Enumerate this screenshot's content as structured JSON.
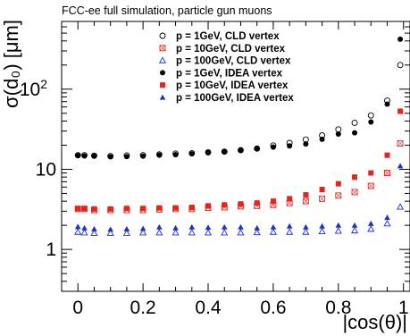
{
  "chart_data": {
    "type": "scatter",
    "title": "FCC-ee full simulation, particle gun muons",
    "xlabel": "|cos(θ)|",
    "ylabel": "σ(d₀) [μm]",
    "xlim": [
      -0.05,
      1.02
    ],
    "ylim": [
      0.3,
      700
    ],
    "ylog": true,
    "grid": false,
    "legend_position": "top-right",
    "x_ticks": [
      "0",
      "0.2",
      "0.4",
      "0.6",
      "0.8",
      "1"
    ],
    "x_tick_values": [
      0,
      0.2,
      0.4,
      0.6,
      0.8,
      1.0
    ],
    "y_ticks": [
      {
        "value": 1,
        "base": "1",
        "exp": ""
      },
      {
        "value": 10,
        "base": "10",
        "exp": ""
      },
      {
        "value": 100,
        "base": "10",
        "exp": "2"
      }
    ],
    "x": [
      0.0,
      0.02,
      0.05,
      0.1,
      0.15,
      0.2,
      0.25,
      0.3,
      0.35,
      0.4,
      0.45,
      0.5,
      0.55,
      0.6,
      0.65,
      0.7,
      0.75,
      0.8,
      0.85,
      0.9,
      0.95,
      0.99
    ],
    "series": [
      {
        "name": "p = 1GeV, CLD vertex",
        "marker": "open-circle",
        "color": "#000000",
        "values": [
          15.0,
          15.0,
          14.8,
          14.6,
          14.9,
          15.0,
          15.3,
          15.7,
          15.9,
          16.3,
          16.6,
          17.3,
          18.1,
          19.8,
          21.3,
          23.5,
          26.5,
          31.5,
          38.0,
          47.0,
          72.0,
          200.0
        ]
      },
      {
        "name": "p = 10GeV, CLD vertex",
        "marker": "open-square",
        "color": "#e8231b",
        "values": [
          3.2,
          3.2,
          3.1,
          3.1,
          3.1,
          3.1,
          3.15,
          3.2,
          3.2,
          3.3,
          3.35,
          3.45,
          3.5,
          3.6,
          3.8,
          4.0,
          4.3,
          4.7,
          5.2,
          6.2,
          9.0,
          21.0
        ]
      },
      {
        "name": "p = 100GeV, CLD vertex",
        "marker": "open-triangle",
        "color": "#1a2fd4",
        "values": [
          1.65,
          1.62,
          1.6,
          1.6,
          1.6,
          1.62,
          1.62,
          1.62,
          1.62,
          1.62,
          1.62,
          1.62,
          1.63,
          1.65,
          1.65,
          1.65,
          1.68,
          1.7,
          1.72,
          1.8,
          2.1,
          3.4
        ]
      },
      {
        "name": "p = 1GeV, IDEA vertex",
        "marker": "filled-circle",
        "color": "#000000",
        "values": [
          14.8,
          14.7,
          14.6,
          14.3,
          14.4,
          14.6,
          15.0,
          15.2,
          15.6,
          16.1,
          16.6,
          17.4,
          18.3,
          18.9,
          19.6,
          20.7,
          23.7,
          27.5,
          28.5,
          39.0,
          65.0,
          420.0
        ]
      },
      {
        "name": "p = 10GeV, IDEA vertex",
        "marker": "filled-square",
        "color": "#e8231b",
        "values": [
          3.25,
          3.25,
          3.2,
          3.2,
          3.25,
          3.25,
          3.3,
          3.3,
          3.35,
          3.5,
          3.6,
          3.7,
          3.8,
          4.0,
          4.3,
          4.8,
          5.6,
          6.6,
          8.0,
          9.0,
          15.0,
          53.0
        ]
      },
      {
        "name": "p = 100GeV, IDEA vertex",
        "marker": "filled-triangle",
        "color": "#1a2fd4",
        "values": [
          1.92,
          1.85,
          1.8,
          1.78,
          1.8,
          1.82,
          1.9,
          1.85,
          1.9,
          1.88,
          1.9,
          1.9,
          1.85,
          1.9,
          1.95,
          1.9,
          1.95,
          2.0,
          2.0,
          2.1,
          2.5,
          11.0
        ]
      }
    ]
  }
}
